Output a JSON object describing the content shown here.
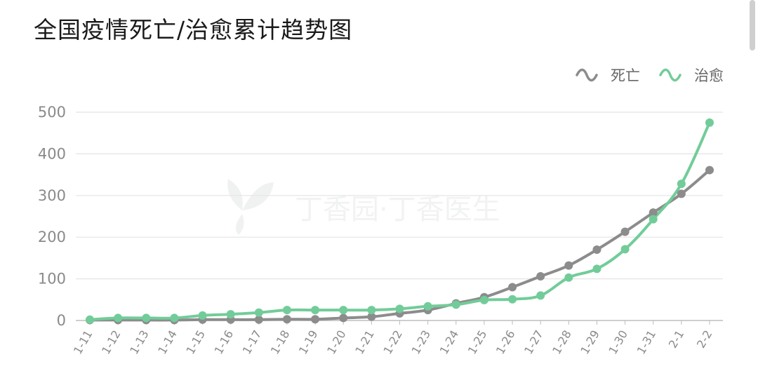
{
  "title": "全国疫情死亡/治愈累计趋势图",
  "watermark": "丁香园·丁香医生",
  "chart_data": {
    "type": "line",
    "title": "全国疫情死亡/治愈累计趋势图",
    "categories": [
      "1-11",
      "1-12",
      "1-13",
      "1-14",
      "1-15",
      "1-16",
      "1-17",
      "1-18",
      "1-19",
      "1-20",
      "1-21",
      "1-22",
      "1-23",
      "1-24",
      "1-25",
      "1-26",
      "1-27",
      "1-28",
      "1-29",
      "1-30",
      "1-31",
      "2-1",
      "2-2"
    ],
    "series": [
      {
        "name": "死亡",
        "color": "#8c8c8c",
        "values": [
          1,
          1,
          1,
          1,
          2,
          2,
          2,
          3,
          3,
          6,
          9,
          17,
          25,
          41,
          56,
          80,
          106,
          132,
          170,
          213,
          259,
          304,
          361
        ]
      },
      {
        "name": "治愈",
        "color": "#72cc99",
        "values": [
          2,
          6,
          6,
          6,
          12,
          15,
          19,
          25,
          25,
          25,
          25,
          28,
          34,
          38,
          49,
          51,
          60,
          103,
          124,
          171,
          243,
          328,
          475
        ]
      }
    ],
    "ylim": [
      0,
      500
    ],
    "yticks": [
      0,
      100,
      200,
      300,
      400,
      500
    ],
    "grid": true,
    "legend": "top-right"
  }
}
